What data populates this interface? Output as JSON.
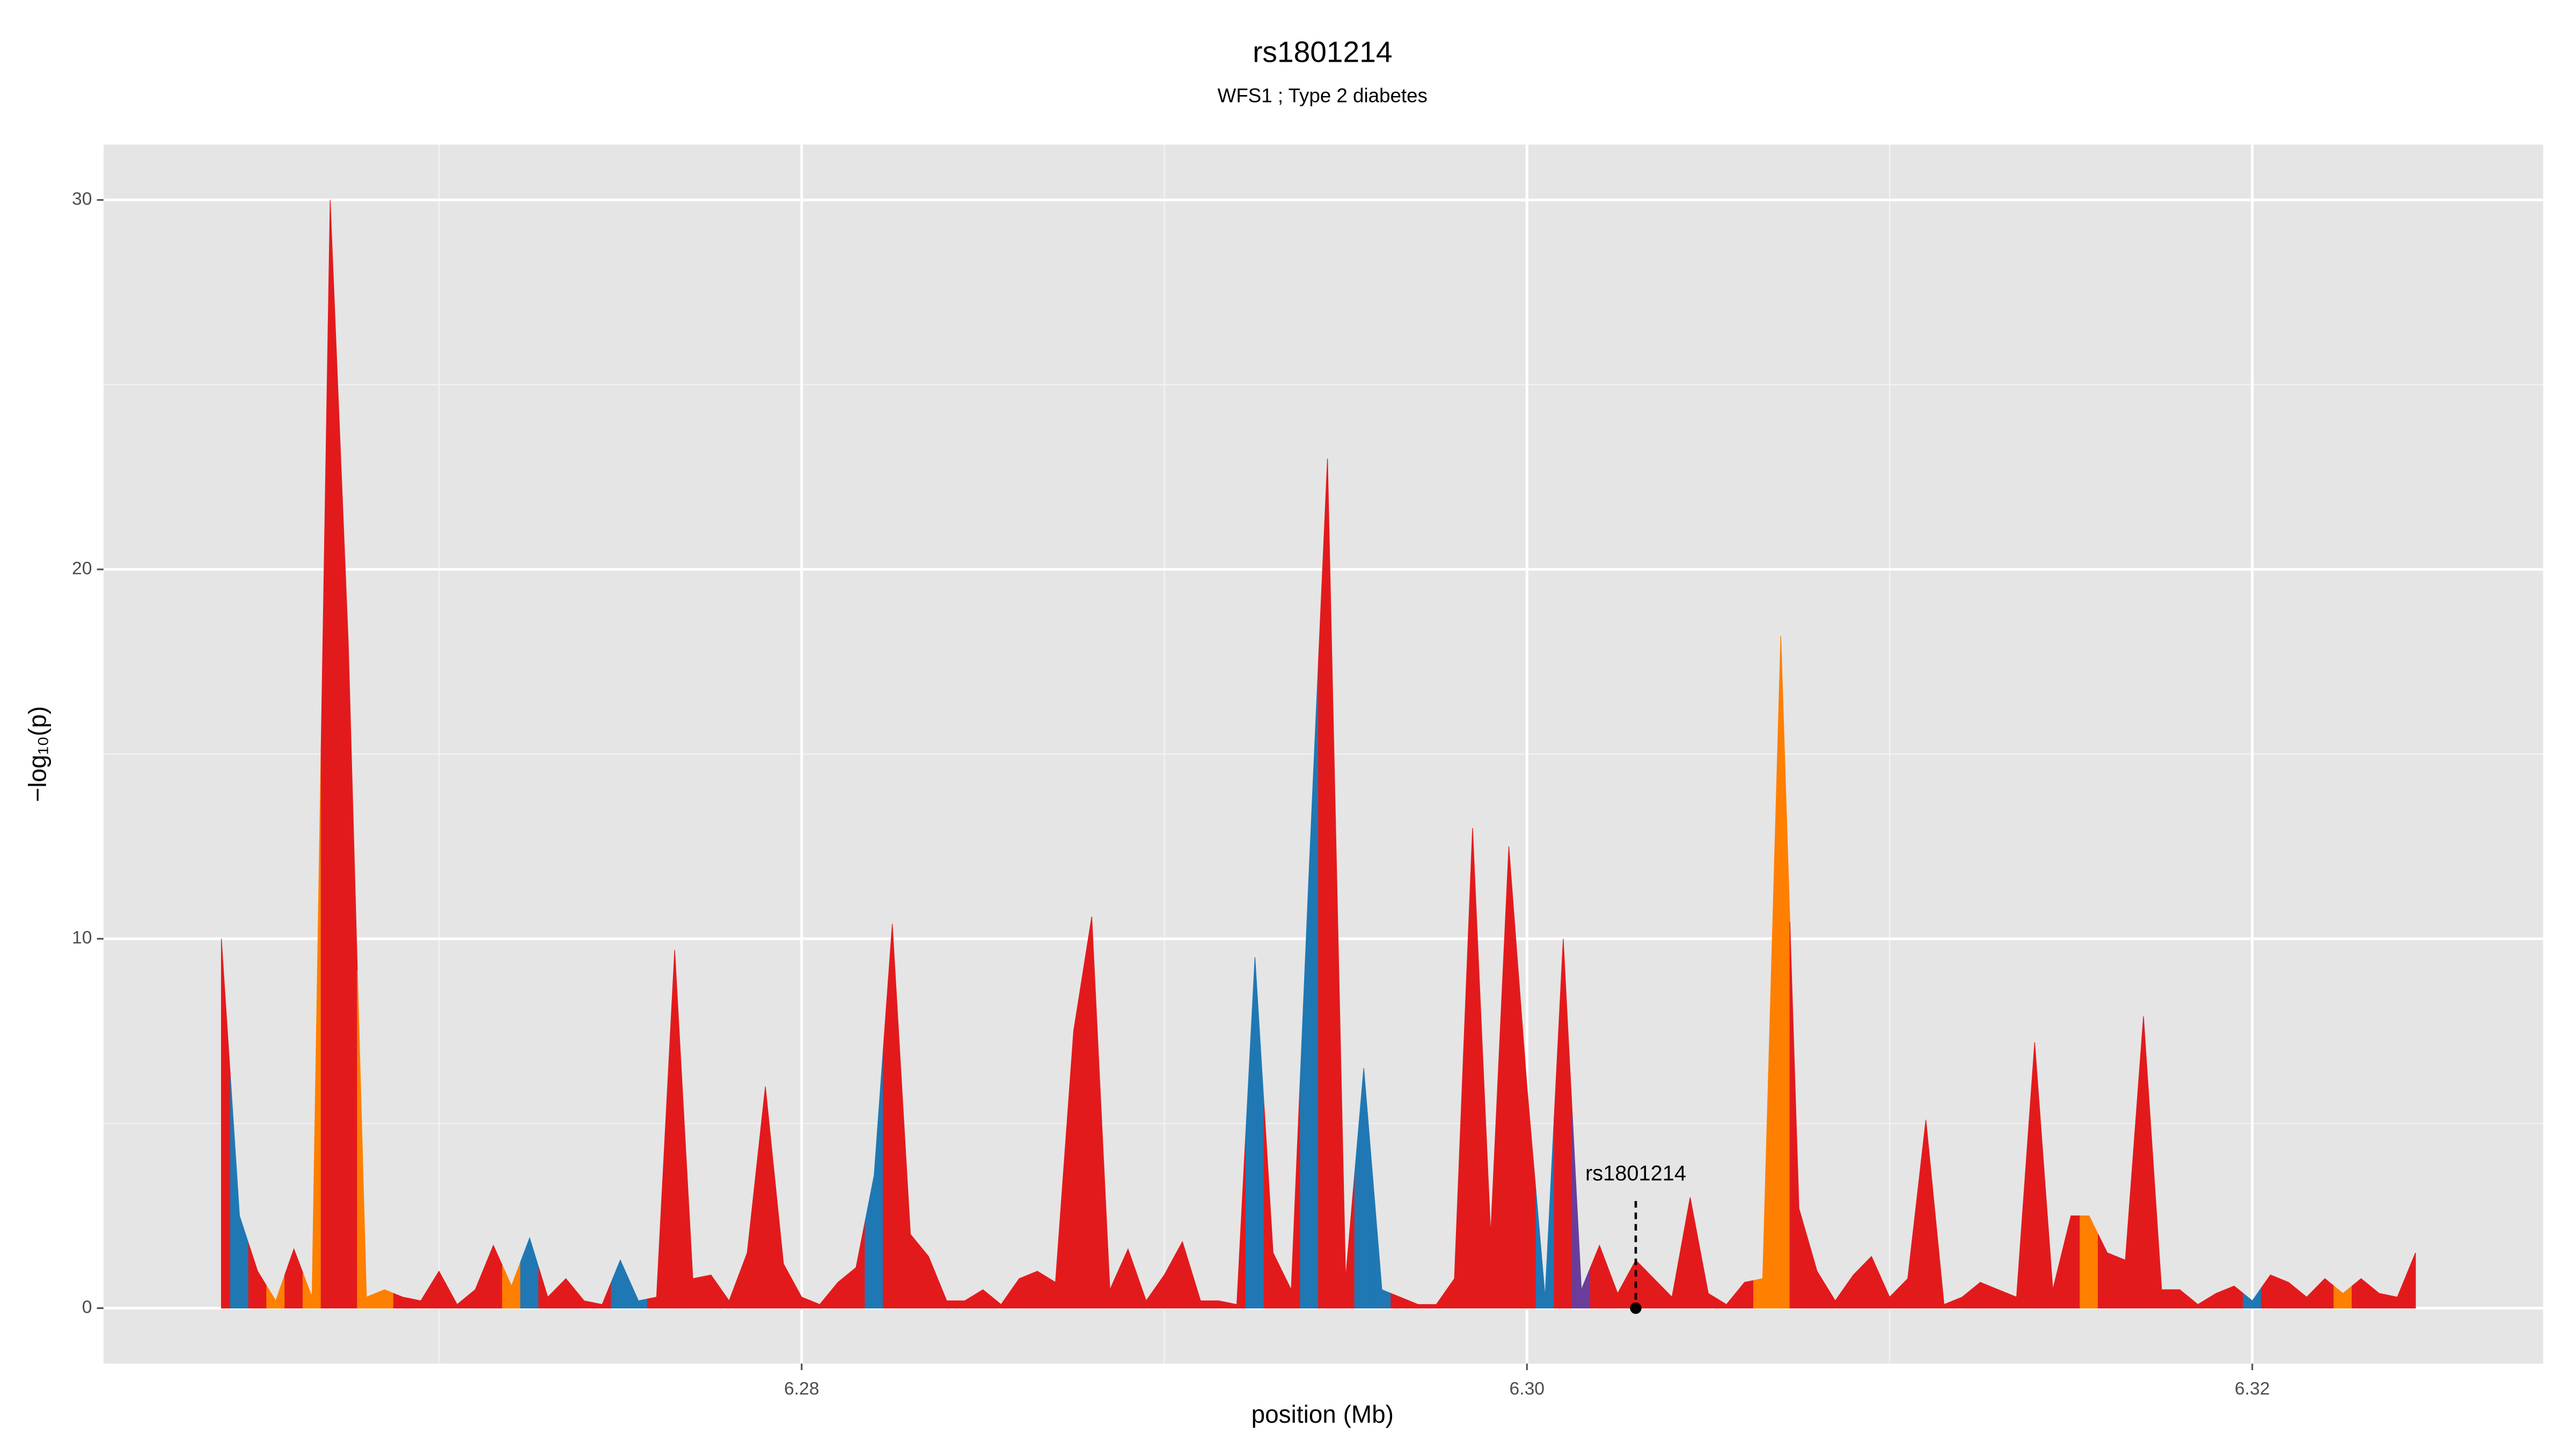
{
  "chart_data": {
    "type": "area",
    "title": "rs1801214",
    "subtitle": "WFS1 ; Type 2 diabetes",
    "x_label": "position (Mb)",
    "y_label": "−log₁₀(p)",
    "xlim": [
      6.26075,
      6.32802
    ],
    "ylim": [
      -1.5,
      31.5
    ],
    "xticks": [
      6.28,
      6.3,
      6.32
    ],
    "xticks_labels": [
      "6.28",
      "6.30",
      "6.32"
    ],
    "yticks": [
      0,
      10,
      20,
      30
    ],
    "xminor": [
      6.27,
      6.29,
      6.31
    ],
    "yminor": [
      5,
      15,
      25
    ],
    "grid": true,
    "x": [
      6.264,
      6.2645,
      6.265,
      6.2655,
      6.266,
      6.2665,
      6.267,
      6.2675,
      6.268,
      6.2685,
      6.269,
      6.2695,
      6.27,
      6.2705,
      6.271,
      6.2715,
      6.272,
      6.2725,
      6.273,
      6.2735,
      6.274,
      6.2745,
      6.275,
      6.2755,
      6.276,
      6.2765,
      6.277,
      6.2775,
      6.278,
      6.2785,
      6.279,
      6.2795,
      6.28,
      6.2805,
      6.281,
      6.2815,
      6.282,
      6.2825,
      6.283,
      6.2835,
      6.284,
      6.2845,
      6.285,
      6.2855,
      6.286,
      6.2865,
      6.287,
      6.2875,
      6.288,
      6.2885,
      6.289,
      6.2895,
      6.29,
      6.2905,
      6.291,
      6.2915,
      6.292,
      6.2925,
      6.293,
      6.2935,
      6.294,
      6.2945,
      6.295,
      6.2955,
      6.296,
      6.2965,
      6.297,
      6.2975,
      6.298,
      6.2985,
      6.299,
      6.2995,
      6.3,
      6.3005,
      6.301,
      6.3015,
      6.302,
      6.3025,
      6.303,
      6.3035,
      6.304,
      6.3045,
      6.305,
      6.3055,
      6.306,
      6.3065,
      6.307,
      6.3075,
      6.308,
      6.3085,
      6.309,
      6.3095,
      6.31,
      6.3105,
      6.311,
      6.3115,
      6.312,
      6.3125,
      6.313,
      6.3135,
      6.314,
      6.3145,
      6.315,
      6.3155,
      6.316,
      6.3165,
      6.317,
      6.3175,
      6.318,
      6.3185,
      6.319,
      6.3195,
      6.32,
      6.3205,
      6.321,
      6.3215,
      6.322,
      6.3225,
      6.323,
      6.3235,
      6.324,
      6.3245
    ],
    "values": [
      10,
      2.5,
      1,
      0.2,
      1.6,
      0.3,
      30,
      18,
      0.3,
      0.5,
      0.3,
      0.2,
      1,
      0.1,
      0.5,
      1.7,
      0.6,
      1.9,
      0.3,
      0.8,
      0.2,
      0.1,
      1.3,
      0.2,
      0.3,
      9.7,
      0.8,
      0.9,
      0.2,
      1.5,
      6,
      1.2,
      0.3,
      0.1,
      0.7,
      1.1,
      3.6,
      10.4,
      2,
      1.4,
      0.2,
      0.2,
      0.5,
      0.1,
      0.8,
      1,
      0.7,
      7.5,
      10.6,
      0.5,
      1.6,
      0.2,
      0.9,
      1.8,
      0.2,
      0.2,
      0.1,
      9.5,
      1.5,
      0.5,
      12,
      23,
      0.8,
      6.5,
      0.5,
      0.3,
      0.1,
      0.1,
      0.8,
      13,
      2,
      12.5,
      6,
      0.3,
      10,
      0.5,
      1.7,
      0.4,
      1.3,
      0.8,
      0.3,
      3,
      0.4,
      0.1,
      0.7,
      0.8,
      18.2,
      2.7,
      1,
      0.2,
      0.9,
      1.4,
      0.3,
      0.8,
      5.1,
      0.1,
      0.3,
      0.7,
      0.5,
      0.3,
      7.2,
      0.5,
      2.5,
      2.5,
      1.5,
      1.3,
      7.9,
      0.5,
      0.5,
      0.1,
      0.4,
      0.6,
      0.2,
      0.9,
      0.7,
      0.3,
      0.8,
      0.4,
      0.8,
      0.4,
      0.3,
      1.5
    ],
    "colors": [
      "#e31a1c",
      "#1f78b4",
      "#e31a1c",
      "#ff7f00",
      "#e31a1c",
      "#ff7f00",
      "#e31a1c",
      "#e31a1c",
      "#ff7f00",
      "#ff7f00",
      "#e31a1c",
      "#e31a1c",
      "#e31a1c",
      "#e31a1c",
      "#e31a1c",
      "#e31a1c",
      "#ff7f00",
      "#1f78b4",
      "#e31a1c",
      "#e31a1c",
      "#e31a1c",
      "#e31a1c",
      "#1f78b4",
      "#1f78b4",
      "#e31a1c",
      "#e31a1c",
      "#e31a1c",
      "#e31a1c",
      "#e31a1c",
      "#e31a1c",
      "#e31a1c",
      "#e31a1c",
      "#e31a1c",
      "#e31a1c",
      "#e31a1c",
      "#e31a1c",
      "#1f78b4",
      "#e31a1c",
      "#e31a1c",
      "#e31a1c",
      "#e31a1c",
      "#e31a1c",
      "#e31a1c",
      "#e31a1c",
      "#e31a1c",
      "#e31a1c",
      "#e31a1c",
      "#e31a1c",
      "#e31a1c",
      "#e31a1c",
      "#e31a1c",
      "#e31a1c",
      "#e31a1c",
      "#e31a1c",
      "#e31a1c",
      "#e31a1c",
      "#e31a1c",
      "#1f78b4",
      "#e31a1c",
      "#e31a1c",
      "#1f78b4",
      "#e31a1c",
      "#e31a1c",
      "#1f78b4",
      "#1f78b4",
      "#e31a1c",
      "#e31a1c",
      "#e31a1c",
      "#e31a1c",
      "#e31a1c",
      "#e31a1c",
      "#e31a1c",
      "#e31a1c",
      "#1f78b4",
      "#e31a1c",
      "#6a3d9a",
      "#e31a1c",
      "#e31a1c",
      "#e31a1c",
      "#e31a1c",
      "#e31a1c",
      "#e31a1c",
      "#e31a1c",
      "#e31a1c",
      "#e31a1c",
      "#ff7f00",
      "#ff7f00",
      "#e31a1c",
      "#e31a1c",
      "#e31a1c",
      "#e31a1c",
      "#e31a1c",
      "#e31a1c",
      "#e31a1c",
      "#e31a1c",
      "#e31a1c",
      "#e31a1c",
      "#e31a1c",
      "#e31a1c",
      "#e31a1c",
      "#e31a1c",
      "#e31a1c",
      "#e31a1c",
      "#ff7f00",
      "#e31a1c",
      "#e31a1c",
      "#e31a1c",
      "#e31a1c",
      "#e31a1c",
      "#e31a1c",
      "#e31a1c",
      "#e31a1c",
      "#1f78b4",
      "#e31a1c",
      "#e31a1c",
      "#e31a1c",
      "#e31a1c",
      "#ff7f00",
      "#e31a1c",
      "#e31a1c",
      "#e31a1c",
      "#e31a1c"
    ],
    "annotation": {
      "label": "rs1801214",
      "x": 6.303,
      "y": 2.9,
      "point_y": 0
    }
  }
}
